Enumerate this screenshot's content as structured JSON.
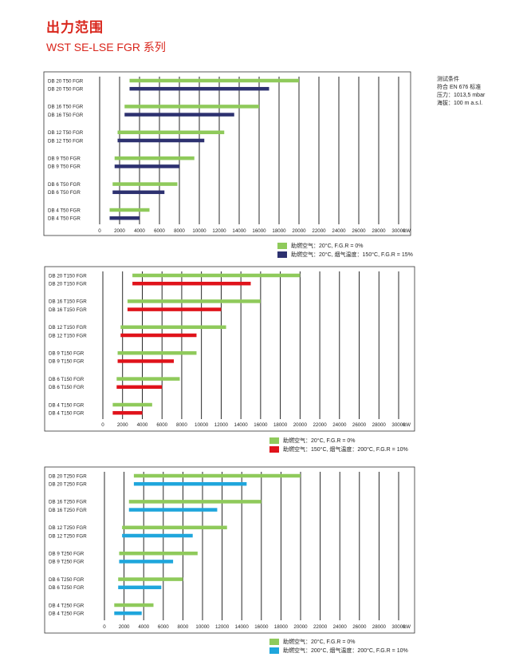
{
  "header": {
    "title": "出力范围",
    "subtitle": "WST  SE-LSE FGR 系列"
  },
  "test_conditions": {
    "title": "测试条件",
    "standard": "符合 EN 676 标准",
    "pressure": "压力：1013,5 mbar",
    "altitude": "海拔：100 m a.s.l."
  },
  "colors": {
    "green": "#8fca5b",
    "navy": "#2d3170",
    "red": "#e0131b",
    "blue": "#1fa6dc"
  },
  "chart_data": [
    {
      "type": "bar",
      "orientation": "horizontal-range",
      "categories": [
        "DB 20  T50 FGR",
        "DB 20  T50 FGR",
        "DB 16  T50 FGR",
        "DB 16  T50 FGR",
        "DB 12  T50 FGR",
        "DB 12  T50 FGR",
        "DB 9  T50 FGR",
        "DB 9  T50 FGR",
        "DB 6  T50 FGR",
        "DB 6  T50 FGR",
        "DB 4  T50 FGR",
        "DB 4  T50 FGR"
      ],
      "bars": [
        {
          "start": 3000,
          "end": 20000,
          "color": "green"
        },
        {
          "start": 3000,
          "end": 17000,
          "color": "navy"
        },
        {
          "start": 2500,
          "end": 16000,
          "color": "green"
        },
        {
          "start": 2500,
          "end": 13500,
          "color": "navy"
        },
        {
          "start": 1800,
          "end": 12500,
          "color": "green"
        },
        {
          "start": 1800,
          "end": 10500,
          "color": "navy"
        },
        {
          "start": 1500,
          "end": 9500,
          "color": "green"
        },
        {
          "start": 1500,
          "end": 8000,
          "color": "navy"
        },
        {
          "start": 1300,
          "end": 7800,
          "color": "green"
        },
        {
          "start": 1300,
          "end": 6500,
          "color": "navy"
        },
        {
          "start": 1000,
          "end": 5000,
          "color": "green"
        },
        {
          "start": 1000,
          "end": 4000,
          "color": "navy"
        }
      ],
      "xlim": [
        0,
        30000
      ],
      "x_ticks": [
        "0",
        "2000",
        "4000",
        "6000",
        "8000",
        "10000",
        "12000",
        "14000",
        "16000",
        "18000",
        "20000",
        "22000",
        "24000",
        "26000",
        "28000",
        "30000"
      ],
      "x_unit": "kW",
      "legend": [
        {
          "color": "green",
          "label": "助燃空气：20°C,  F.G.R = 0%"
        },
        {
          "color": "navy",
          "label": "助燃空气：20°C, 烟气温度：150°C, F.G.R = 15%"
        }
      ]
    },
    {
      "type": "bar",
      "orientation": "horizontal-range",
      "categories": [
        "DB 20  T150 FGR",
        "DB 20  T150 FGR",
        "DB 16  T150 FGR",
        "DB 16  T150 FGR",
        "DB 12  T150 FGR",
        "DB 12  T150 FGR",
        "DB 9  T150 FGR",
        "DB 9  T150 FGR",
        "DB 6  T150 FGR",
        "DB 6  T150 FGR",
        "DB 4  T150 FGR",
        "DB 4  T150 FGR"
      ],
      "bars": [
        {
          "start": 3000,
          "end": 20000,
          "color": "green"
        },
        {
          "start": 3000,
          "end": 15000,
          "color": "red"
        },
        {
          "start": 2500,
          "end": 16000,
          "color": "green"
        },
        {
          "start": 2500,
          "end": 12000,
          "color": "red"
        },
        {
          "start": 1800,
          "end": 12500,
          "color": "green"
        },
        {
          "start": 1800,
          "end": 9500,
          "color": "red"
        },
        {
          "start": 1500,
          "end": 9500,
          "color": "green"
        },
        {
          "start": 1500,
          "end": 7200,
          "color": "red"
        },
        {
          "start": 1400,
          "end": 7800,
          "color": "green"
        },
        {
          "start": 1400,
          "end": 6000,
          "color": "red"
        },
        {
          "start": 1000,
          "end": 5000,
          "color": "green"
        },
        {
          "start": 1000,
          "end": 4000,
          "color": "red"
        }
      ],
      "xlim": [
        0,
        30000
      ],
      "x_ticks": [
        "0",
        "2000",
        "4000",
        "6000",
        "8000",
        "10000",
        "12000",
        "14000",
        "16000",
        "18000",
        "20000",
        "22000",
        "24000",
        "26000",
        "28000",
        "30000"
      ],
      "x_unit": "kW",
      "legend": [
        {
          "color": "green",
          "label": "助燃空气：20°C,  F.G.R = 0%"
        },
        {
          "color": "red",
          "label": "助燃空气：150°C, 烟气温度：200°C, F.G.R = 10%"
        }
      ]
    },
    {
      "type": "bar",
      "orientation": "horizontal-range",
      "categories": [
        "DB 20  T250 FGR",
        "DB 20  T250 FGR",
        "DB 16  T250 FGR",
        "DB 16  T250 FGR",
        "DB 12  T250 FGR",
        "DB 12  T250 FGR",
        "DB 9  T250 FGR",
        "DB 9  T250 FGR",
        "DB 6  T250 FGR",
        "DB 6  T250 FGR",
        "DB 4  T250 FGR",
        "DB 4  T250 FGR"
      ],
      "bars": [
        {
          "start": 3000,
          "end": 20000,
          "color": "green"
        },
        {
          "start": 3000,
          "end": 14500,
          "color": "blue"
        },
        {
          "start": 2500,
          "end": 16000,
          "color": "green"
        },
        {
          "start": 2500,
          "end": 11500,
          "color": "blue"
        },
        {
          "start": 1800,
          "end": 12500,
          "color": "green"
        },
        {
          "start": 1800,
          "end": 9000,
          "color": "blue"
        },
        {
          "start": 1500,
          "end": 9500,
          "color": "green"
        },
        {
          "start": 1500,
          "end": 7000,
          "color": "blue"
        },
        {
          "start": 1400,
          "end": 8000,
          "color": "green"
        },
        {
          "start": 1400,
          "end": 5800,
          "color": "blue"
        },
        {
          "start": 1000,
          "end": 5000,
          "color": "green"
        },
        {
          "start": 1000,
          "end": 3800,
          "color": "blue"
        }
      ],
      "xlim": [
        0,
        30000
      ],
      "x_ticks": [
        "0",
        "2000",
        "4000",
        "6000",
        "8000",
        "10000",
        "12000",
        "14000",
        "16000",
        "18000",
        "20000",
        "22000",
        "24000",
        "26000",
        "28000",
        "30000"
      ],
      "x_unit": "kW",
      "legend": [
        {
          "color": "green",
          "label": "助燃空气：20°C,  F.G.R = 0%"
        },
        {
          "color": "blue",
          "label": "助燃空气：200°C, 烟气温度：200°C, F.G.R = 10%"
        }
      ]
    }
  ]
}
